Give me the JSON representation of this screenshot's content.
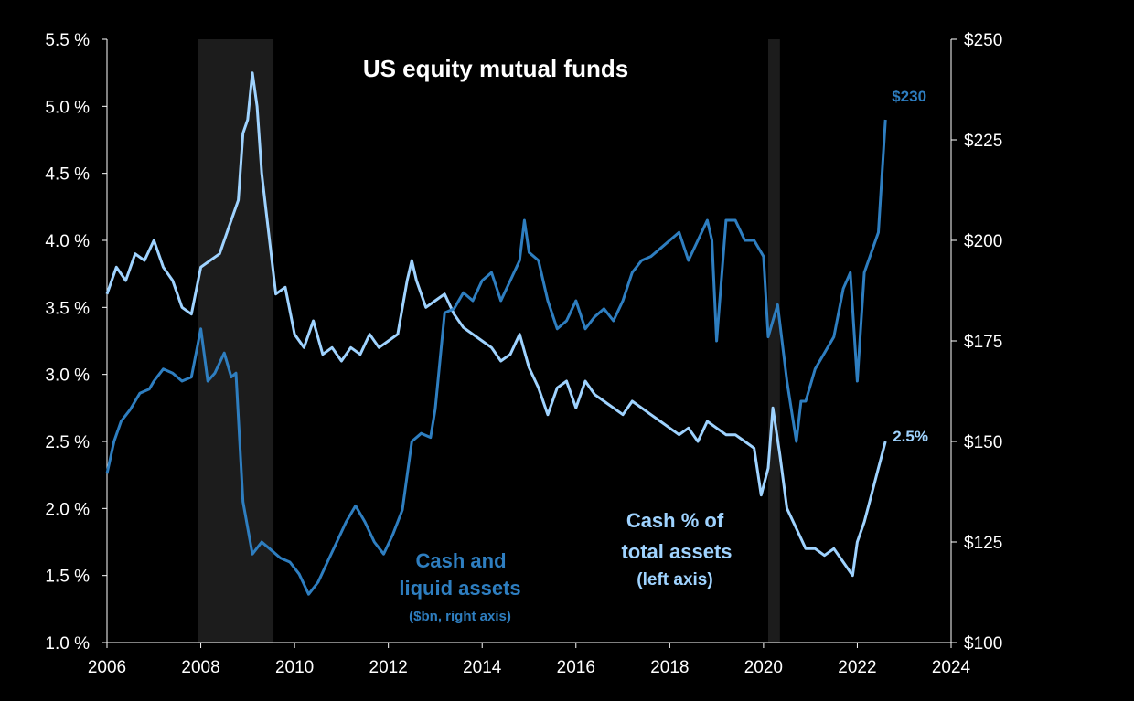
{
  "chart_data": {
    "type": "line",
    "title": "US equity mutual funds",
    "x_range": [
      2006,
      2024
    ],
    "x_ticks": [
      "2006",
      "2008",
      "2010",
      "2012",
      "2014",
      "2016",
      "2018",
      "2020",
      "2022",
      "2024"
    ],
    "y_left": {
      "range": [
        1.0,
        5.5
      ],
      "ticks": [
        "1.0 %",
        "1.5 %",
        "2.0 %",
        "2.5 %",
        "3.0 %",
        "3.5 %",
        "4.0 %",
        "4.5 %",
        "5.0 %",
        "5.5 %"
      ]
    },
    "y_right": {
      "range": [
        100,
        250
      ],
      "ticks": [
        "$100",
        "$125",
        "$150",
        "$175",
        "$200",
        "$225",
        "$250"
      ]
    },
    "grid": false,
    "recessions": [
      [
        2007.95,
        2009.55
      ],
      [
        2020.1,
        2020.35
      ]
    ],
    "series": [
      {
        "name": "Cash % of total assets (left axis)",
        "axis": "left",
        "color": "#9fd3ff",
        "x": [
          2006.0,
          2006.2,
          2006.4,
          2006.6,
          2006.8,
          2007.0,
          2007.2,
          2007.4,
          2007.6,
          2007.8,
          2008.0,
          2008.2,
          2008.4,
          2008.6,
          2008.8,
          2008.9,
          2009.0,
          2009.1,
          2009.2,
          2009.3,
          2009.4,
          2009.6,
          2009.8,
          2010.0,
          2010.2,
          2010.4,
          2010.6,
          2010.8,
          2011.0,
          2011.2,
          2011.4,
          2011.6,
          2011.8,
          2012.0,
          2012.2,
          2012.4,
          2012.5,
          2012.6,
          2012.8,
          2013.0,
          2013.2,
          2013.4,
          2013.6,
          2013.8,
          2014.0,
          2014.2,
          2014.4,
          2014.6,
          2014.8,
          2015.0,
          2015.2,
          2015.4,
          2015.6,
          2015.8,
          2016.0,
          2016.2,
          2016.4,
          2016.6,
          2016.8,
          2017.0,
          2017.2,
          2017.4,
          2017.6,
          2017.8,
          2018.0,
          2018.2,
          2018.4,
          2018.6,
          2018.8,
          2019.0,
          2019.2,
          2019.4,
          2019.6,
          2019.8,
          2019.95,
          2020.1,
          2020.2,
          2020.35,
          2020.5,
          2020.7,
          2020.9,
          2021.1,
          2021.3,
          2021.5,
          2021.7,
          2021.9,
          2022.0,
          2022.15,
          2022.3,
          2022.45,
          2022.6
        ],
        "values": [
          3.6,
          3.8,
          3.7,
          3.9,
          3.85,
          4.0,
          3.8,
          3.7,
          3.5,
          3.45,
          3.8,
          3.85,
          3.9,
          4.1,
          4.3,
          4.8,
          4.9,
          5.25,
          5.0,
          4.5,
          4.2,
          3.6,
          3.65,
          3.3,
          3.2,
          3.4,
          3.15,
          3.2,
          3.1,
          3.2,
          3.15,
          3.3,
          3.2,
          3.25,
          3.3,
          3.7,
          3.85,
          3.7,
          3.5,
          3.55,
          3.6,
          3.45,
          3.35,
          3.3,
          3.25,
          3.2,
          3.1,
          3.15,
          3.3,
          3.05,
          2.9,
          2.7,
          2.9,
          2.95,
          2.75,
          2.95,
          2.85,
          2.8,
          2.75,
          2.7,
          2.8,
          2.75,
          2.7,
          2.65,
          2.6,
          2.55,
          2.6,
          2.5,
          2.65,
          2.6,
          2.55,
          2.55,
          2.5,
          2.45,
          2.1,
          2.3,
          2.75,
          2.4,
          2.0,
          1.85,
          1.7,
          1.7,
          1.65,
          1.7,
          1.6,
          1.5,
          1.75,
          1.9,
          2.1,
          2.3,
          2.5
        ],
        "end_label": "2.5%"
      },
      {
        "name": "Cash and liquid assets ($bn, right axis)",
        "axis": "right",
        "color": "#2e7ec0",
        "x": [
          2006.0,
          2006.15,
          2006.3,
          2006.5,
          2006.7,
          2006.9,
          2007.0,
          2007.2,
          2007.4,
          2007.6,
          2007.8,
          2008.0,
          2008.15,
          2008.3,
          2008.5,
          2008.65,
          2008.75,
          2008.9,
          2009.1,
          2009.3,
          2009.5,
          2009.7,
          2009.9,
          2010.1,
          2010.3,
          2010.5,
          2010.7,
          2010.9,
          2011.1,
          2011.3,
          2011.5,
          2011.7,
          2011.9,
          2012.1,
          2012.3,
          2012.5,
          2012.7,
          2012.9,
          2013.0,
          2013.2,
          2013.4,
          2013.6,
          2013.8,
          2014.0,
          2014.2,
          2014.4,
          2014.6,
          2014.8,
          2014.9,
          2015.0,
          2015.2,
          2015.4,
          2015.6,
          2015.8,
          2016.0,
          2016.2,
          2016.4,
          2016.6,
          2016.8,
          2017.0,
          2017.2,
          2017.4,
          2017.6,
          2017.8,
          2018.0,
          2018.2,
          2018.4,
          2018.6,
          2018.8,
          2018.9,
          2019.0,
          2019.2,
          2019.4,
          2019.6,
          2019.8,
          2020.0,
          2020.1,
          2020.2,
          2020.3,
          2020.5,
          2020.7,
          2020.8,
          2020.9,
          2021.1,
          2021.3,
          2021.5,
          2021.7,
          2021.85,
          2022.0,
          2022.15,
          2022.3,
          2022.45,
          2022.6
        ],
        "values": [
          142,
          150,
          155,
          158,
          162,
          163,
          165,
          168,
          167,
          165,
          166,
          178,
          165,
          167,
          172,
          166,
          167,
          135,
          122,
          125,
          123,
          121,
          120,
          117,
          112,
          115,
          120,
          125,
          130,
          134,
          130,
          125,
          122,
          127,
          133,
          150,
          152,
          151,
          158,
          182,
          183,
          187,
          185,
          190,
          192,
          185,
          190,
          195,
          205,
          197,
          195,
          185,
          178,
          180,
          185,
          178,
          181,
          183,
          180,
          185,
          192,
          195,
          196,
          198,
          200,
          202,
          195,
          200,
          205,
          200,
          175,
          205,
          205,
          200,
          200,
          196,
          176,
          180,
          184,
          165,
          150,
          160,
          160,
          168,
          172,
          176,
          188,
          192,
          165,
          192,
          197,
          202,
          230
        ],
        "end_label": "$230"
      }
    ]
  },
  "annotations": {
    "cash_pct_line1": "Cash % of",
    "cash_pct_line2": "total assets",
    "cash_pct_line3": "(left axis)",
    "liquid_line1": "Cash and",
    "liquid_line2": "liquid  assets",
    "liquid_line3": "($bn, right axis)"
  }
}
